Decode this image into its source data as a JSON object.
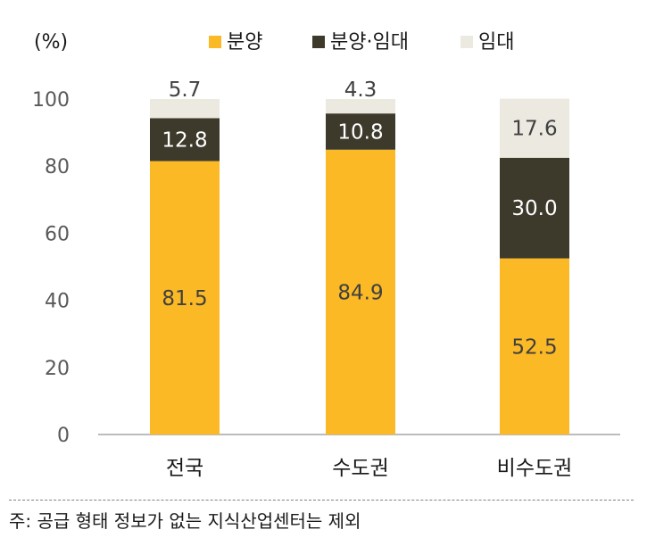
{
  "unit_label": "(%)",
  "footnote": "주: 공급 형태 정보가 없는 지식산업센터는 제외",
  "colors": {
    "분양": "#fbb925",
    "분양·임대": "#3d3a2c",
    "임대": "#ece9e0",
    "axis": "#a6a6a6"
  },
  "chart_data": {
    "type": "bar",
    "stacked": true,
    "categories": [
      "전국",
      "수도권",
      "비수도권"
    ],
    "series": [
      {
        "name": "분양",
        "values": [
          81.5,
          84.9,
          52.5
        ],
        "label_color": "#404040"
      },
      {
        "name": "분양·임대",
        "values": [
          12.8,
          10.8,
          30.0
        ],
        "label_color": "#ffffff"
      },
      {
        "name": "임대",
        "values": [
          5.7,
          4.3,
          17.6
        ],
        "label_color": "#404040"
      }
    ],
    "ylim": [
      0,
      100
    ],
    "yticks": [
      0,
      20,
      40,
      60,
      80,
      100
    ],
    "ylabel": "(%)",
    "legend": "top-right",
    "grid": false
  }
}
